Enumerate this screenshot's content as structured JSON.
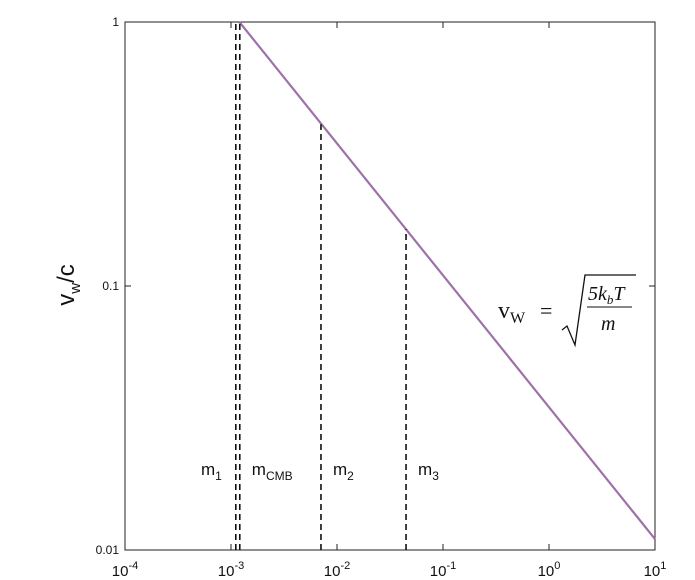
{
  "chart_data": {
    "type": "line",
    "y_label": {
      "base": "v",
      "sub": "w",
      "tail": "/c"
    },
    "x_scale": "log",
    "y_scale": "log",
    "xlim": [
      0.0001,
      10
    ],
    "ylim": [
      0.01,
      1
    ],
    "xticks": [
      {
        "value": 0.0001,
        "label": "10^-4"
      },
      {
        "value": 0.001,
        "label": "10^-3"
      },
      {
        "value": 0.01,
        "label": "10^-2"
      },
      {
        "value": 0.1,
        "label": "10^-1"
      },
      {
        "value": 1,
        "label": "10^0"
      },
      {
        "value": 10,
        "label": "10^1"
      }
    ],
    "yticks": [
      0.01,
      0.1,
      1
    ],
    "series": [
      {
        "color": "#9e72a9",
        "x": [
          0.0012,
          10
        ],
        "values": [
          1,
          0.011
        ]
      }
    ],
    "markers": [
      {
        "name": "m",
        "sub": "1",
        "x": 0.00111,
        "top": 1
      },
      {
        "name": "m",
        "sub": "CMB",
        "x": 0.00121,
        "top": 1
      },
      {
        "name": "m",
        "sub": "2",
        "x": 0.00706,
        "top": 0.41
      },
      {
        "name": "m",
        "sub": "3",
        "x": 0.0448,
        "top": 0.164
      }
    ],
    "marker_color": "#111111",
    "formula": {
      "lhs": "v",
      "lhs_sub": "W",
      "eq": "=",
      "num": "5k",
      "num_sub": "b",
      "num_tail": "T",
      "den": "m"
    }
  }
}
